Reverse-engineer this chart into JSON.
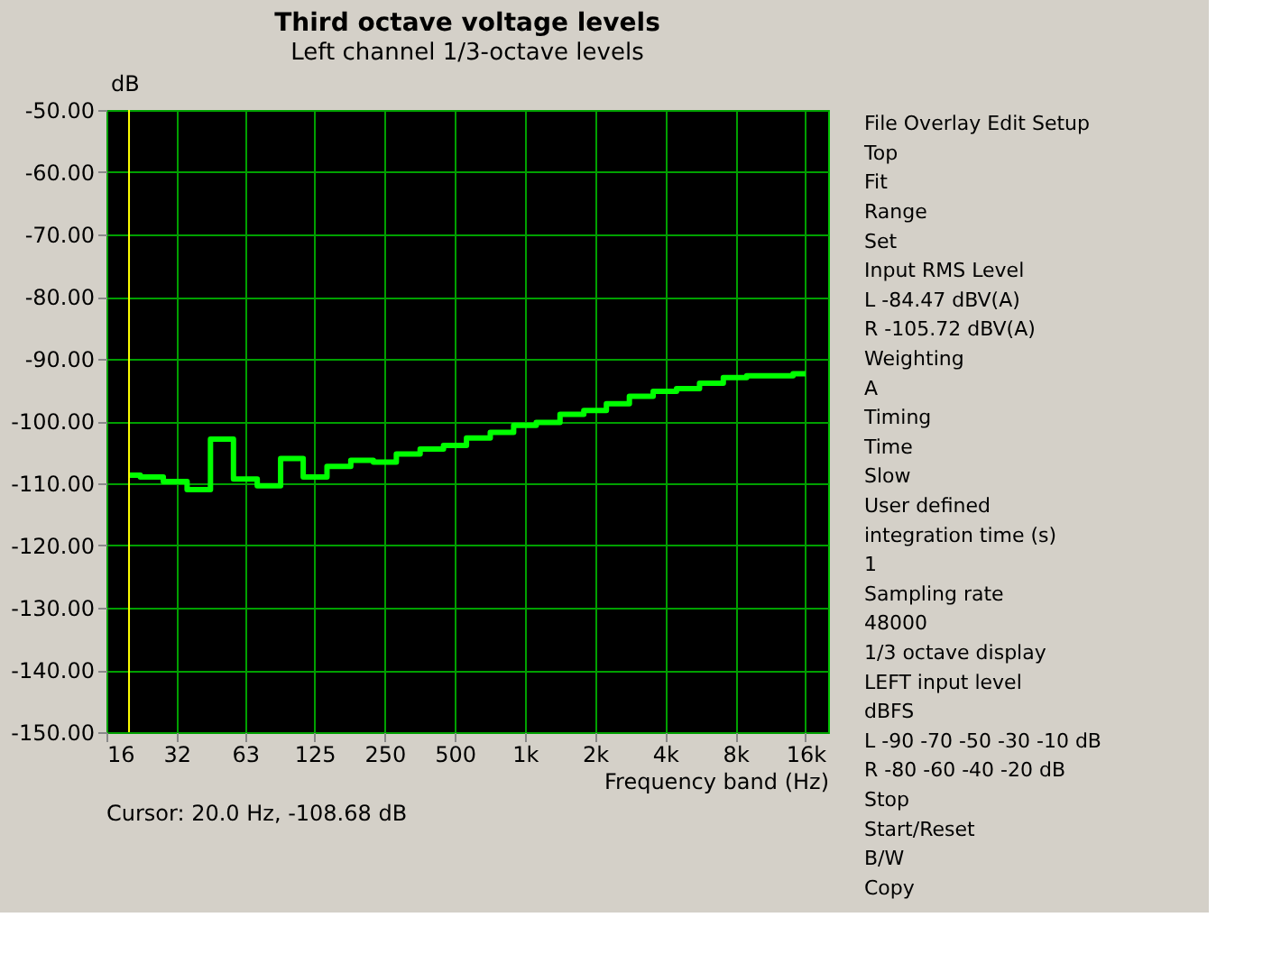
{
  "chart_data": [
    {
      "type": "step",
      "title": "Third octave voltage levels",
      "subtitle": "Left channel 1/3-octave levels",
      "xlabel": "Frequency band (Hz)",
      "ylabel": "dB",
      "x": [
        20,
        25,
        31.5,
        40,
        50,
        63,
        80,
        100,
        125,
        160,
        200,
        250,
        315,
        400,
        500,
        630,
        800,
        1000,
        1250,
        1600,
        2000,
        2500,
        3150,
        4000,
        5000,
        6300,
        8000,
        10000,
        12500,
        16000
      ],
      "series": [
        {
          "color": "#00ff00",
          "values": [
            -108.7,
            -109.0,
            -109.7,
            -111.0,
            -102.9,
            -109.3,
            -110.4,
            -106.0,
            -109.0,
            -107.3,
            -106.3,
            -106.6,
            -105.3,
            -104.5,
            -103.9,
            -102.7,
            -101.8,
            -100.7,
            -100.2,
            -98.9,
            -98.3,
            -97.2,
            -96.0,
            -95.2,
            -94.8,
            -93.9,
            -93.0,
            -92.7,
            -92.7,
            -92.4
          ]
        }
      ],
      "log": "x",
      "xlim": [
        16,
        20000
      ],
      "xticks": [
        16,
        32,
        63,
        125,
        250,
        500,
        {
          "value": 1000,
          "label": "1k"
        },
        {
          "value": 2000,
          "label": "2k"
        },
        {
          "value": 4000,
          "label": "4k"
        },
        {
          "value": 8000,
          "label": "8k"
        },
        {
          "value": 16000,
          "label": "16k"
        }
      ],
      "ylim": [
        -150,
        -50
      ],
      "yticks": [
        {
          "value": -150,
          "label": "-150.00"
        },
        {
          "value": -140,
          "label": "-140.00"
        },
        {
          "value": -130,
          "label": "-130.00"
        },
        {
          "value": -120,
          "label": "-120.00"
        },
        {
          "value": -110,
          "label": "-110.00"
        },
        {
          "value": -100,
          "label": "-100.00"
        },
        {
          "value": -90,
          "label": "-90.00"
        },
        {
          "value": -80,
          "label": "-80.00"
        },
        {
          "value": -70,
          "label": "-70.00"
        },
        {
          "value": -60,
          "label": "-60.00"
        },
        {
          "value": -50,
          "label": "-50.00"
        }
      ],
      "grid": true,
      "annotations": [
        "Cursor:   20.0 Hz, -108.68 dB"
      ],
      "ref_lines": [
        {
          "axis": "x",
          "value": 20,
          "color": "#ffff00"
        }
      ]
    },
    {
      "type": "other",
      "annotations": [
        "File   Overlay   Edit   Setup",
        "Top",
        "Fit",
        "Range",
        "Set",
        "Input RMS Level",
        "L -84.47 dBV(A)",
        "R -105.72 dBV(A)",
        "Weighting",
        "A",
        "Timing",
        "Time",
        "Slow",
        "User defined",
        "integration time (s)",
        "1",
        "Sampling rate",
        "48000",
        "1/3 octave display",
        "LEFT input level",
        "dBFS",
        "L  -90  -70  -50  -30  -10  dB",
        "R  -80  -60  -40  -20  dB",
        "Stop",
        "Start/Reset",
        "B/W",
        "Copy"
      ]
    }
  ]
}
